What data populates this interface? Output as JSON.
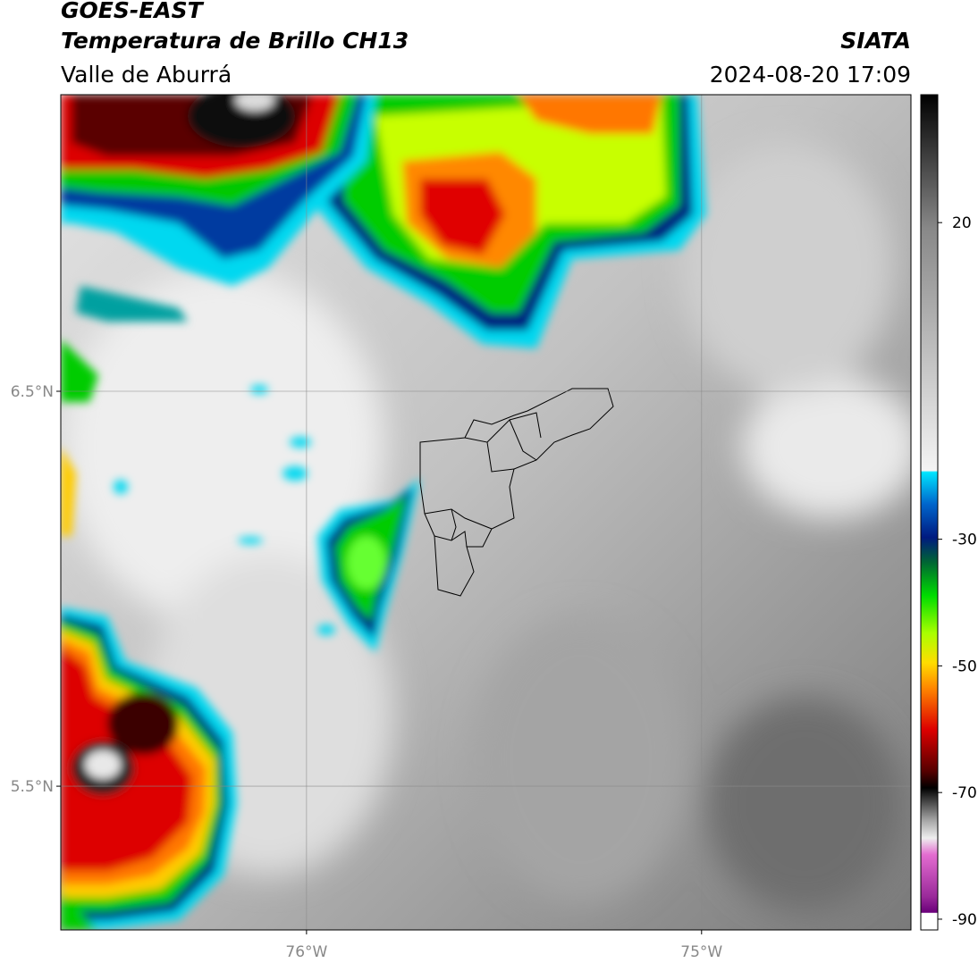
{
  "header": {
    "title": "GOES-EAST",
    "subtitle": "Temperatura de Brillo CH13",
    "region": "Valle de Aburrá",
    "source": "SIATA",
    "datetime": "2024-08-20 17:09"
  },
  "map": {
    "xlim": [
      -76.622,
      -74.47
    ],
    "ylim": [
      5.136,
      7.251
    ],
    "xticks": [
      {
        "value": -76,
        "label": "76°W"
      },
      {
        "value": -75,
        "label": "75°W"
      }
    ],
    "yticks": [
      {
        "value": 6.5,
        "label": "6.5°N"
      },
      {
        "value": 5.5,
        "label": "5.5°N"
      }
    ],
    "grid": true
  },
  "colorbar": {
    "lim": [
      -91.7,
      40.2
    ],
    "ticks": [
      20,
      -30,
      -50,
      -70,
      -90
    ]
  }
}
